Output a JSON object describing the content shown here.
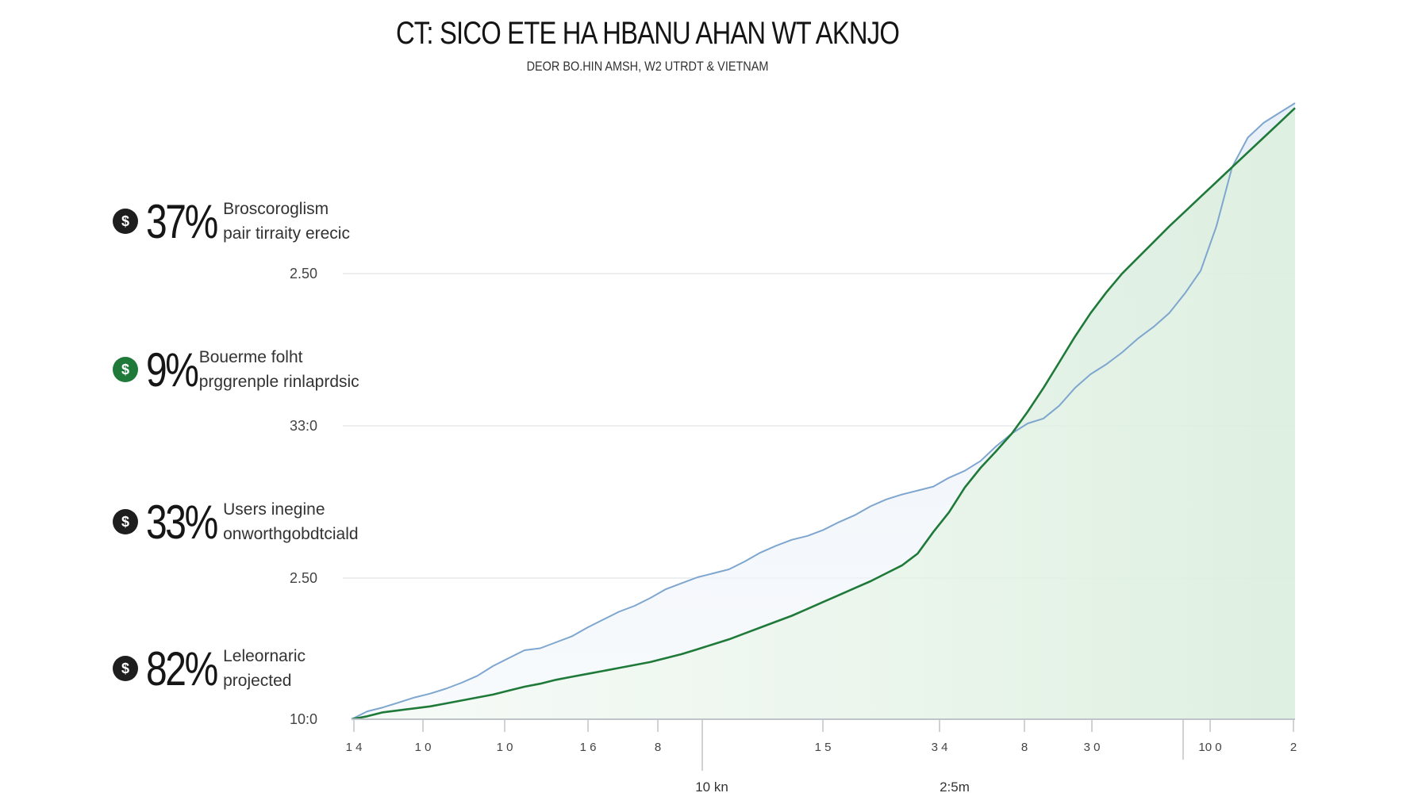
{
  "title": "CT: SICO ETE HA HBANU AHAN WT AKNJO",
  "subtitle": "DEOR BO.HIN AMSH, W2 UTRDT & VIETNAM",
  "stats": [
    {
      "value": "37%",
      "line1": "Broscoroglism",
      "line2": "pair tirraity erecic",
      "icon": "dollar-icon",
      "color": "#1e1e1e"
    },
    {
      "value": "9%",
      "line1": "Bouerme  folht",
      "line2": "prggrenple rinlaprdsic",
      "icon": "dollar-icon",
      "color": "#1f7a3a"
    },
    {
      "value": "33%",
      "line1": "Users inegine",
      "line2": "onworthgobdtciald",
      "icon": "dollar-icon",
      "color": "#1e1e1e"
    },
    {
      "value": "82%",
      "line1": "Leleornaric",
      "line2": "projected",
      "icon": "dollar-icon",
      "color": "#1e1e1e"
    }
  ],
  "chart_data": {
    "type": "area",
    "y_tick_labels": [
      "2.50",
      "33:0",
      "2.50",
      "10:0"
    ],
    "x_tick_labels": [
      "1 4",
      "1 0",
      "1 0",
      "1 6",
      "8",
      "1 5",
      "3 4",
      "8",
      "3 0",
      "10 0",
      "2"
    ],
    "x_axis_labels": [
      "10 kn",
      "2:5m"
    ],
    "grid": true,
    "series": [
      {
        "color": "#7ea6cf",
        "x": [
          0,
          1,
          2,
          3,
          4,
          5,
          6,
          7,
          8,
          9,
          10,
          11,
          12,
          13,
          14,
          15,
          16,
          17,
          18,
          19,
          20,
          21,
          22,
          23,
          24,
          25,
          26,
          27,
          28,
          29,
          30,
          31,
          32,
          33,
          34,
          35,
          36,
          37,
          38,
          39,
          40,
          41,
          42,
          43,
          44,
          45,
          46,
          47,
          48,
          49,
          50,
          51,
          52,
          53,
          54,
          55,
          56,
          57,
          58,
          59,
          60
        ],
        "values": [
          0,
          0.08,
          0.12,
          0.17,
          0.22,
          0.26,
          0.31,
          0.37,
          0.44,
          0.54,
          0.62,
          0.7,
          0.72,
          0.78,
          0.84,
          0.93,
          1.01,
          1.09,
          1.15,
          1.23,
          1.32,
          1.38,
          1.44,
          1.48,
          1.52,
          1.6,
          1.69,
          1.76,
          1.82,
          1.86,
          1.92,
          2.0,
          2.07,
          2.16,
          2.23,
          2.28,
          2.32,
          2.36,
          2.45,
          2.52,
          2.62,
          2.77,
          2.9,
          3.0,
          3.05,
          3.18,
          3.36,
          3.5,
          3.6,
          3.72,
          3.86,
          3.98,
          4.12,
          4.32,
          4.55,
          5.0,
          5.6,
          5.9,
          6.05,
          6.15,
          6.25
        ]
      },
      {
        "color": "#1f7a3a",
        "x": [
          0,
          1,
          2,
          3,
          4,
          5,
          6,
          7,
          8,
          9,
          10,
          11,
          12,
          13,
          14,
          15,
          16,
          17,
          18,
          19,
          20,
          21,
          22,
          23,
          24,
          25,
          26,
          27,
          28,
          29,
          30,
          31,
          32,
          33,
          34,
          35,
          36,
          37,
          38,
          39,
          40,
          41,
          42,
          43,
          44,
          45,
          46,
          47,
          48,
          49,
          50,
          51,
          52,
          53,
          54,
          55,
          56,
          57,
          58,
          59,
          60
        ],
        "values": [
          0,
          0.03,
          0.07,
          0.09,
          0.11,
          0.13,
          0.16,
          0.19,
          0.22,
          0.25,
          0.29,
          0.33,
          0.36,
          0.4,
          0.43,
          0.46,
          0.49,
          0.52,
          0.55,
          0.58,
          0.62,
          0.66,
          0.71,
          0.76,
          0.81,
          0.87,
          0.93,
          0.99,
          1.05,
          1.12,
          1.19,
          1.26,
          1.33,
          1.4,
          1.48,
          1.56,
          1.68,
          1.9,
          2.1,
          2.35,
          2.55,
          2.72,
          2.9,
          3.12,
          3.36,
          3.62,
          3.88,
          4.12,
          4.33,
          4.52,
          4.68,
          4.84,
          5.0,
          5.15,
          5.3,
          5.45,
          5.6,
          5.75,
          5.9,
          6.05,
          6.2
        ]
      }
    ]
  }
}
